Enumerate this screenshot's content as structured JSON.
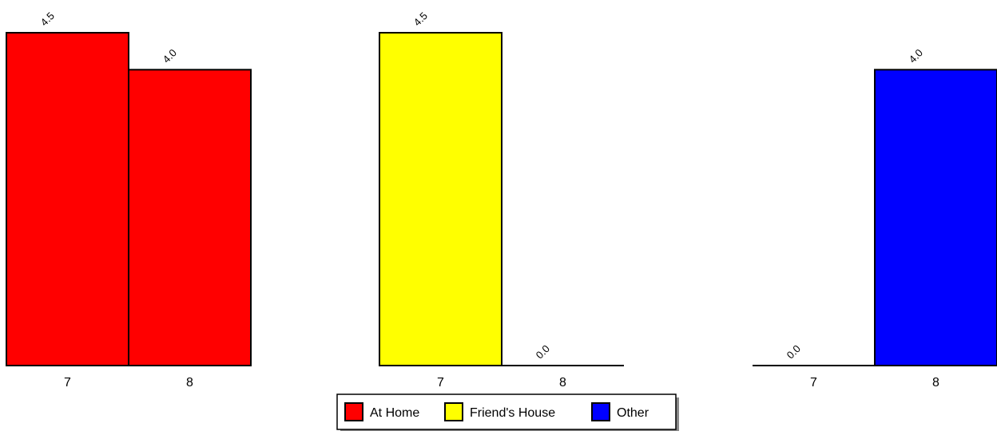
{
  "chart_data": {
    "type": "bar",
    "categories": [
      "7",
      "8"
    ],
    "ylim": [
      0,
      4.5
    ],
    "series": [
      {
        "name": "At Home",
        "color": "#ff0000",
        "values": [
          4.5,
          4.0
        ],
        "value_labels": [
          "4.5",
          "4.0"
        ]
      },
      {
        "name": "Friend's House",
        "color": "#ffff00",
        "values": [
          4.5,
          0.0
        ],
        "value_labels": [
          "4.5",
          "0.0"
        ]
      },
      {
        "name": "Other",
        "color": "#0000ff",
        "values": [
          0.0,
          4.0
        ],
        "value_labels": [
          "0.0",
          "4.0"
        ]
      }
    ],
    "legend": "bottom"
  }
}
